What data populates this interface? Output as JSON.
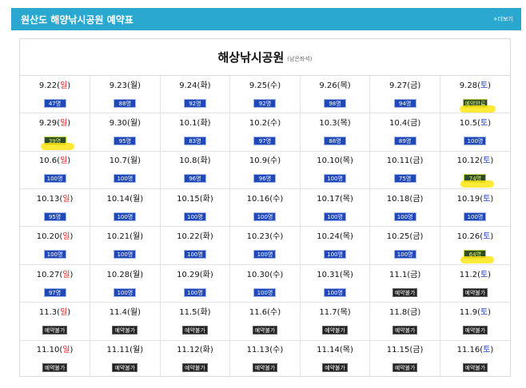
{
  "header": {
    "title": "원산도 해양낚시공원 예약표",
    "more_label": "+더보기"
  },
  "park": {
    "title": "해상낚시공원",
    "subtitle": "(남은좌석)"
  },
  "colors": {
    "header_bg": "#2aa8cf",
    "available": "#1f48b8",
    "closed": "#222222",
    "sunday": "#e02020",
    "saturday": "#1c3fcf",
    "highlighter": "#ffe614"
  },
  "weeks": [
    [
      {
        "d": "9.22(",
        "wd": "일",
        "e": ")",
        "status": "47명",
        "type": "avail",
        "day": "sun"
      },
      {
        "d": "9.23(",
        "wd": "월",
        "e": ")",
        "status": "88명",
        "type": "avail",
        "day": "wk"
      },
      {
        "d": "9.24(",
        "wd": "화",
        "e": ")",
        "status": "92명",
        "type": "avail",
        "day": "wk"
      },
      {
        "d": "9.25(",
        "wd": "수",
        "e": ")",
        "status": "92명",
        "type": "avail",
        "day": "wk"
      },
      {
        "d": "9.26(",
        "wd": "목",
        "e": ")",
        "status": "98명",
        "type": "avail",
        "day": "wk"
      },
      {
        "d": "9.27(",
        "wd": "금",
        "e": ")",
        "status": "94명",
        "type": "avail",
        "day": "wk"
      },
      {
        "d": "9.28(",
        "wd": "토",
        "e": ")",
        "status": "예약완료",
        "type": "done",
        "day": "sat",
        "hl": true
      }
    ],
    [
      {
        "d": "9.29(",
        "wd": "일",
        "e": ")",
        "status": "39명",
        "type": "avail",
        "day": "sun",
        "hl": true
      },
      {
        "d": "9.30(",
        "wd": "월",
        "e": ")",
        "status": "95명",
        "type": "avail",
        "day": "wk"
      },
      {
        "d": "10.1(",
        "wd": "화",
        "e": ")",
        "status": "83명",
        "type": "avail",
        "day": "wk"
      },
      {
        "d": "10.2(",
        "wd": "수",
        "e": ")",
        "status": "97명",
        "type": "avail",
        "day": "wk"
      },
      {
        "d": "10.3(",
        "wd": "목",
        "e": ")",
        "status": "88명",
        "type": "avail",
        "day": "wk"
      },
      {
        "d": "10.4(",
        "wd": "금",
        "e": ")",
        "status": "89명",
        "type": "avail",
        "day": "wk"
      },
      {
        "d": "10.5(",
        "wd": "토",
        "e": ")",
        "status": "100명",
        "type": "avail",
        "day": "sat"
      }
    ],
    [
      {
        "d": "10.6(",
        "wd": "일",
        "e": ")",
        "status": "100명",
        "type": "avail",
        "day": "sun"
      },
      {
        "d": "10.7(",
        "wd": "월",
        "e": ")",
        "status": "100명",
        "type": "avail",
        "day": "wk"
      },
      {
        "d": "10.8(",
        "wd": "화",
        "e": ")",
        "status": "96명",
        "type": "avail",
        "day": "wk"
      },
      {
        "d": "10.9(",
        "wd": "수",
        "e": ")",
        "status": "96명",
        "type": "avail",
        "day": "wk"
      },
      {
        "d": "10.10(",
        "wd": "목",
        "e": ")",
        "status": "100명",
        "type": "avail",
        "day": "wk"
      },
      {
        "d": "10.11(",
        "wd": "금",
        "e": ")",
        "status": "75명",
        "type": "avail",
        "day": "wk"
      },
      {
        "d": "10.12(",
        "wd": "토",
        "e": ")",
        "status": "74명",
        "type": "avail",
        "day": "sat",
        "hl": true
      }
    ],
    [
      {
        "d": "10.13(",
        "wd": "일",
        "e": ")",
        "status": "95명",
        "type": "avail",
        "day": "sun"
      },
      {
        "d": "10.14(",
        "wd": "월",
        "e": ")",
        "status": "100명",
        "type": "avail",
        "day": "wk"
      },
      {
        "d": "10.15(",
        "wd": "화",
        "e": ")",
        "status": "100명",
        "type": "avail",
        "day": "wk"
      },
      {
        "d": "10.16(",
        "wd": "수",
        "e": ")",
        "status": "100명",
        "type": "avail",
        "day": "wk"
      },
      {
        "d": "10.17(",
        "wd": "목",
        "e": ")",
        "status": "100명",
        "type": "avail",
        "day": "wk"
      },
      {
        "d": "10.18(",
        "wd": "금",
        "e": ")",
        "status": "100명",
        "type": "avail",
        "day": "wk"
      },
      {
        "d": "10.19(",
        "wd": "토",
        "e": ")",
        "status": "100명",
        "type": "avail",
        "day": "sat"
      }
    ],
    [
      {
        "d": "10.20(",
        "wd": "일",
        "e": ")",
        "status": "100명",
        "type": "avail",
        "day": "sun"
      },
      {
        "d": "10.21(",
        "wd": "월",
        "e": ")",
        "status": "100명",
        "type": "avail",
        "day": "wk"
      },
      {
        "d": "10.22(",
        "wd": "화",
        "e": ")",
        "status": "100명",
        "type": "avail",
        "day": "wk"
      },
      {
        "d": "10.23(",
        "wd": "수",
        "e": ")",
        "status": "100명",
        "type": "avail",
        "day": "wk"
      },
      {
        "d": "10.24(",
        "wd": "목",
        "e": ")",
        "status": "100명",
        "type": "avail",
        "day": "wk"
      },
      {
        "d": "10.25(",
        "wd": "금",
        "e": ")",
        "status": "100명",
        "type": "avail",
        "day": "wk"
      },
      {
        "d": "10.26(",
        "wd": "토",
        "e": ")",
        "status": "64명",
        "type": "avail",
        "day": "sat",
        "hl": true
      }
    ],
    [
      {
        "d": "10.27(",
        "wd": "일",
        "e": ")",
        "status": "97명",
        "type": "avail",
        "day": "sun"
      },
      {
        "d": "10.28(",
        "wd": "월",
        "e": ")",
        "status": "100명",
        "type": "avail",
        "day": "wk"
      },
      {
        "d": "10.29(",
        "wd": "화",
        "e": ")",
        "status": "100명",
        "type": "avail",
        "day": "wk"
      },
      {
        "d": "10.30(",
        "wd": "수",
        "e": ")",
        "status": "100명",
        "type": "avail",
        "day": "wk"
      },
      {
        "d": "10.31(",
        "wd": "목",
        "e": ")",
        "status": "100명",
        "type": "avail",
        "day": "wk"
      },
      {
        "d": "11.1(",
        "wd": "금",
        "e": ")",
        "status": "예약불가",
        "type": "closed",
        "day": "wk"
      },
      {
        "d": "11.2(",
        "wd": "토",
        "e": ")",
        "status": "예약불가",
        "type": "closed",
        "day": "sat"
      }
    ],
    [
      {
        "d": "11.3(",
        "wd": "일",
        "e": ")",
        "status": "예약불가",
        "type": "closed",
        "day": "sun"
      },
      {
        "d": "11.4(",
        "wd": "월",
        "e": ")",
        "status": "예약불가",
        "type": "closed",
        "day": "wk"
      },
      {
        "d": "11.5(",
        "wd": "화",
        "e": ")",
        "status": "예약불가",
        "type": "closed",
        "day": "wk"
      },
      {
        "d": "11.6(",
        "wd": "수",
        "e": ")",
        "status": "예약불가",
        "type": "closed",
        "day": "wk"
      },
      {
        "d": "11.7(",
        "wd": "목",
        "e": ")",
        "status": "예약불가",
        "type": "closed",
        "day": "wk"
      },
      {
        "d": "11.8(",
        "wd": "금",
        "e": ")",
        "status": "예약불가",
        "type": "closed",
        "day": "wk"
      },
      {
        "d": "11.9(",
        "wd": "토",
        "e": ")",
        "status": "예약불가",
        "type": "closed",
        "day": "sat"
      }
    ],
    [
      {
        "d": "11.10(",
        "wd": "일",
        "e": ")",
        "status": "예약불가",
        "type": "closed",
        "day": "sun"
      },
      {
        "d": "11.11(",
        "wd": "월",
        "e": ")",
        "status": "예약불가",
        "type": "closed",
        "day": "wk"
      },
      {
        "d": "11.12(",
        "wd": "화",
        "e": ")",
        "status": "예약불가",
        "type": "closed",
        "day": "wk"
      },
      {
        "d": "11.13(",
        "wd": "수",
        "e": ")",
        "status": "예약불가",
        "type": "closed",
        "day": "wk"
      },
      {
        "d": "11.14(",
        "wd": "목",
        "e": ")",
        "status": "예약불가",
        "type": "closed",
        "day": "wk"
      },
      {
        "d": "11.15(",
        "wd": "금",
        "e": ")",
        "status": "예약불가",
        "type": "closed",
        "day": "wk"
      },
      {
        "d": "11.16(",
        "wd": "토",
        "e": ")",
        "status": "예약불가",
        "type": "closed",
        "day": "sat"
      }
    ]
  ]
}
